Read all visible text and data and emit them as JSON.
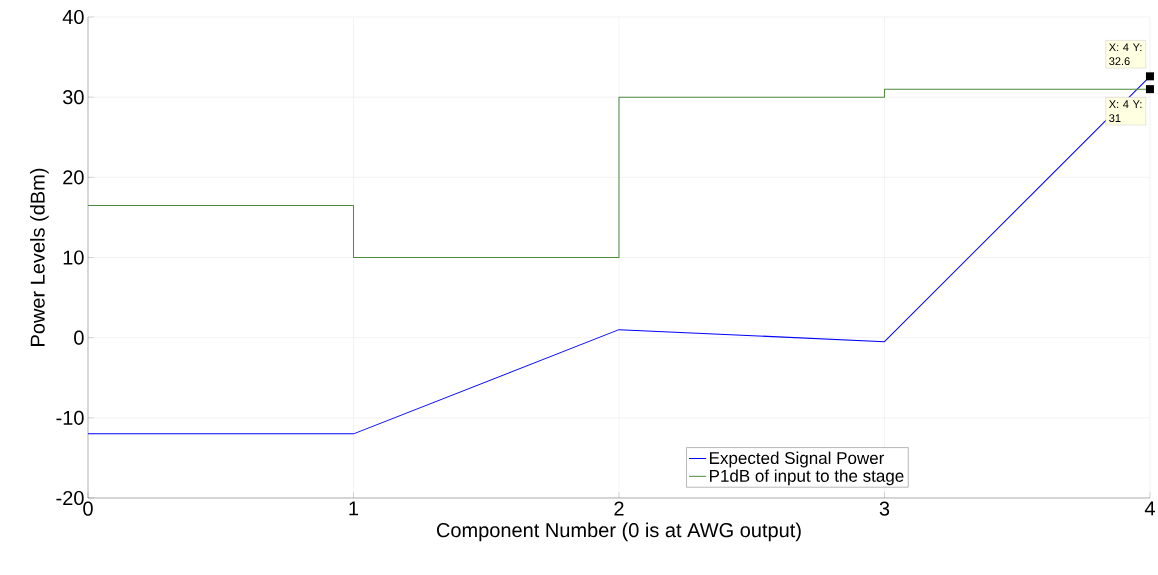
{
  "chart_data": {
    "type": "line",
    "xlabel": "Component Number (0 is at AWG output)",
    "ylabel": "Power Levels (dBm)",
    "x": [
      0,
      1,
      2,
      3,
      4
    ],
    "series": [
      {
        "name": "Expected Signal Power",
        "color": "#0000ff",
        "values": [
          -12,
          -12,
          1,
          -0.5,
          32.6
        ]
      },
      {
        "name": "P1dB of input to the stage",
        "color": "#4d8a3c",
        "type": "step",
        "values": [
          16.5,
          10,
          30,
          31,
          31
        ]
      }
    ],
    "xlim": [
      0,
      4
    ],
    "ylim": [
      -20,
      40
    ],
    "xticks": [
      0,
      1,
      2,
      3,
      4
    ],
    "yticks": [
      -20,
      -10,
      0,
      10,
      20,
      30,
      40
    ],
    "grid": true,
    "legend": "bottom",
    "annotations": [
      {
        "text": "X: 4 Y: 32.6",
        "x": 4,
        "y": 32.6
      },
      {
        "text": "X: 4 Y: 31",
        "x": 4,
        "y": 31
      }
    ]
  }
}
